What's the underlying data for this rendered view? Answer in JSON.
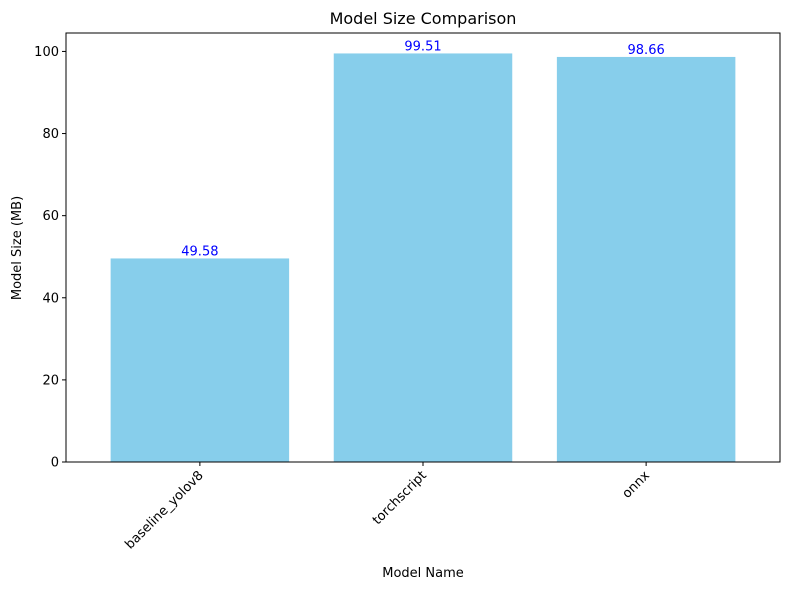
{
  "chart_data": {
    "type": "bar",
    "title": "Model Size Comparison",
    "xlabel": "Model Name",
    "ylabel": "Model Size (MB)",
    "categories": [
      "baseline_yolov8",
      "torchscript",
      "onnx"
    ],
    "values": [
      49.58,
      99.51,
      98.66
    ],
    "value_labels": [
      "49.58",
      "99.51",
      "98.66"
    ],
    "ylim": [
      0,
      104.49
    ],
    "yticks": [
      0,
      20,
      40,
      60,
      80,
      100
    ],
    "ytick_labels": [
      "0",
      "20",
      "40",
      "60",
      "80",
      "100"
    ],
    "x_tick_rotation_deg": 45,
    "grid": false,
    "legend": "none",
    "bar_color": "#87CEEB",
    "label_color": "#0000FF"
  }
}
